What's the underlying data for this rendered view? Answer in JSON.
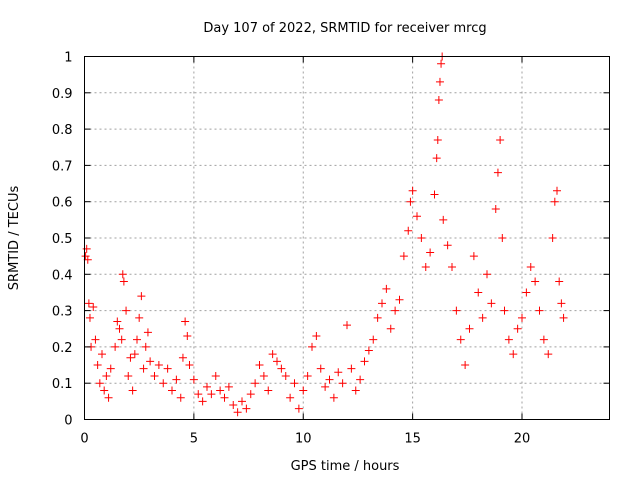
{
  "chart_data": {
    "type": "scatter",
    "title": "Day 107 of 2022, SRMTID for receiver mrcg",
    "xlabel": "GPS time / hours",
    "ylabel": "SRMTID / TECUs",
    "xlim": [
      0,
      24
    ],
    "ylim": [
      0,
      1
    ],
    "x_ticks": [
      0,
      5,
      10,
      15,
      20
    ],
    "y_ticks": [
      0,
      0.1,
      0.2,
      0.3,
      0.4,
      0.5,
      0.6,
      0.7,
      0.8,
      0.9,
      1
    ],
    "x_tick_labels": [
      "0",
      "5",
      "10",
      "15",
      "20"
    ],
    "y_tick_labels": [
      "0",
      "0.1",
      "0.2",
      "0.3",
      "0.4",
      "0.5",
      "0.6",
      "0.7",
      "0.8",
      "0.9",
      "1"
    ],
    "grid": true,
    "marker": "+",
    "color": "#ff0000",
    "series": [
      {
        "name": "SRMTID",
        "points": [
          [
            0.05,
            0.45
          ],
          [
            0.1,
            0.47
          ],
          [
            0.15,
            0.44
          ],
          [
            0.2,
            0.32
          ],
          [
            0.25,
            0.28
          ],
          [
            0.3,
            0.2
          ],
          [
            0.4,
            0.31
          ],
          [
            0.5,
            0.22
          ],
          [
            0.6,
            0.15
          ],
          [
            0.7,
            0.1
          ],
          [
            0.8,
            0.18
          ],
          [
            0.9,
            0.08
          ],
          [
            1.0,
            0.12
          ],
          [
            1.1,
            0.06
          ],
          [
            1.2,
            0.14
          ],
          [
            1.4,
            0.2
          ],
          [
            1.5,
            0.27
          ],
          [
            1.6,
            0.25
          ],
          [
            1.7,
            0.22
          ],
          [
            1.75,
            0.4
          ],
          [
            1.8,
            0.38
          ],
          [
            1.9,
            0.3
          ],
          [
            2.0,
            0.12
          ],
          [
            2.1,
            0.17
          ],
          [
            2.2,
            0.08
          ],
          [
            2.3,
            0.18
          ],
          [
            2.4,
            0.22
          ],
          [
            2.5,
            0.28
          ],
          [
            2.6,
            0.34
          ],
          [
            2.7,
            0.14
          ],
          [
            2.8,
            0.2
          ],
          [
            2.9,
            0.24
          ],
          [
            3.0,
            0.16
          ],
          [
            3.2,
            0.12
          ],
          [
            3.4,
            0.15
          ],
          [
            3.6,
            0.1
          ],
          [
            3.8,
            0.14
          ],
          [
            4.0,
            0.08
          ],
          [
            4.2,
            0.11
          ],
          [
            4.4,
            0.06
          ],
          [
            4.5,
            0.17
          ],
          [
            4.6,
            0.27
          ],
          [
            4.7,
            0.23
          ],
          [
            4.8,
            0.15
          ],
          [
            5.0,
            0.11
          ],
          [
            5.2,
            0.07
          ],
          [
            5.4,
            0.05
          ],
          [
            5.6,
            0.09
          ],
          [
            5.8,
            0.07
          ],
          [
            6.0,
            0.12
          ],
          [
            6.2,
            0.08
          ],
          [
            6.4,
            0.06
          ],
          [
            6.6,
            0.09
          ],
          [
            6.8,
            0.04
          ],
          [
            7.0,
            0.02
          ],
          [
            7.2,
            0.05
          ],
          [
            7.4,
            0.03
          ],
          [
            7.6,
            0.07
          ],
          [
            7.8,
            0.1
          ],
          [
            8.0,
            0.15
          ],
          [
            8.2,
            0.12
          ],
          [
            8.4,
            0.08
          ],
          [
            8.6,
            0.18
          ],
          [
            8.8,
            0.16
          ],
          [
            9.0,
            0.14
          ],
          [
            9.2,
            0.12
          ],
          [
            9.4,
            0.06
          ],
          [
            9.6,
            0.1
          ],
          [
            9.8,
            0.03
          ],
          [
            10.0,
            0.08
          ],
          [
            10.2,
            0.12
          ],
          [
            10.4,
            0.2
          ],
          [
            10.6,
            0.23
          ],
          [
            10.8,
            0.14
          ],
          [
            11.0,
            0.09
          ],
          [
            11.2,
            0.11
          ],
          [
            11.4,
            0.06
          ],
          [
            11.6,
            0.13
          ],
          [
            11.8,
            0.1
          ],
          [
            12.0,
            0.26
          ],
          [
            12.2,
            0.14
          ],
          [
            12.4,
            0.08
          ],
          [
            12.6,
            0.11
          ],
          [
            12.8,
            0.16
          ],
          [
            13.0,
            0.19
          ],
          [
            13.2,
            0.22
          ],
          [
            13.4,
            0.28
          ],
          [
            13.6,
            0.32
          ],
          [
            13.8,
            0.36
          ],
          [
            14.0,
            0.25
          ],
          [
            14.2,
            0.3
          ],
          [
            14.4,
            0.33
          ],
          [
            14.6,
            0.45
          ],
          [
            14.8,
            0.52
          ],
          [
            14.9,
            0.6
          ],
          [
            15.0,
            0.63
          ],
          [
            15.2,
            0.56
          ],
          [
            15.4,
            0.5
          ],
          [
            15.6,
            0.42
          ],
          [
            15.8,
            0.46
          ],
          [
            16.0,
            0.62
          ],
          [
            16.1,
            0.72
          ],
          [
            16.15,
            0.77
          ],
          [
            16.2,
            0.88
          ],
          [
            16.25,
            0.93
          ],
          [
            16.3,
            0.98
          ],
          [
            16.35,
            1.0
          ],
          [
            16.4,
            0.55
          ],
          [
            16.6,
            0.48
          ],
          [
            16.8,
            0.42
          ],
          [
            17.0,
            0.3
          ],
          [
            17.2,
            0.22
          ],
          [
            17.4,
            0.15
          ],
          [
            17.6,
            0.25
          ],
          [
            17.8,
            0.45
          ],
          [
            18.0,
            0.35
          ],
          [
            18.2,
            0.28
          ],
          [
            18.4,
            0.4
          ],
          [
            18.6,
            0.32
          ],
          [
            18.8,
            0.58
          ],
          [
            18.9,
            0.68
          ],
          [
            19.0,
            0.77
          ],
          [
            19.1,
            0.5
          ],
          [
            19.2,
            0.3
          ],
          [
            19.4,
            0.22
          ],
          [
            19.6,
            0.18
          ],
          [
            19.8,
            0.25
          ],
          [
            20.0,
            0.28
          ],
          [
            20.2,
            0.35
          ],
          [
            20.4,
            0.42
          ],
          [
            20.6,
            0.38
          ],
          [
            20.8,
            0.3
          ],
          [
            21.0,
            0.22
          ],
          [
            21.2,
            0.18
          ],
          [
            21.4,
            0.5
          ],
          [
            21.5,
            0.6
          ],
          [
            21.6,
            0.63
          ],
          [
            21.7,
            0.38
          ],
          [
            21.8,
            0.32
          ],
          [
            21.9,
            0.28
          ]
        ]
      }
    ]
  }
}
